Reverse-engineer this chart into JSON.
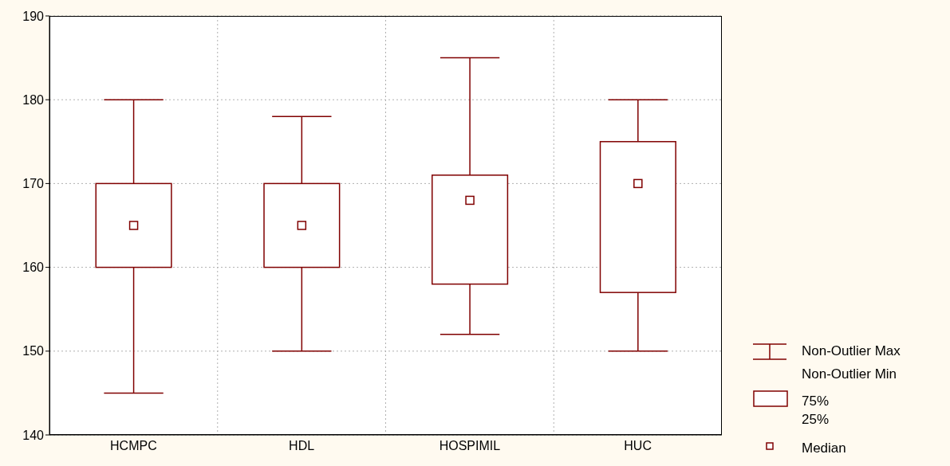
{
  "chart_data": {
    "type": "box",
    "categories": [
      "HCMPC",
      "HDL",
      "HOSPIMIL",
      "HUC"
    ],
    "color": "#800000",
    "boxes": [
      {
        "low": 145,
        "q1": 160,
        "median": 165,
        "q3": 170,
        "high": 180
      },
      {
        "low": 150,
        "q1": 160,
        "median": 165,
        "q3": 170,
        "high": 178
      },
      {
        "low": 152,
        "q1": 158,
        "median": 168,
        "q3": 171,
        "high": 185
      },
      {
        "low": 150,
        "q1": 157,
        "median": 170,
        "q3": 175,
        "high": 180
      }
    ],
    "ylim": [
      140,
      190
    ],
    "yticks": [
      140,
      150,
      160,
      170,
      180,
      190
    ],
    "grid": true,
    "annotations": [
      "Non-Outlier Max",
      "Non-Outlier Min",
      "75%",
      "25%",
      "Median"
    ]
  }
}
